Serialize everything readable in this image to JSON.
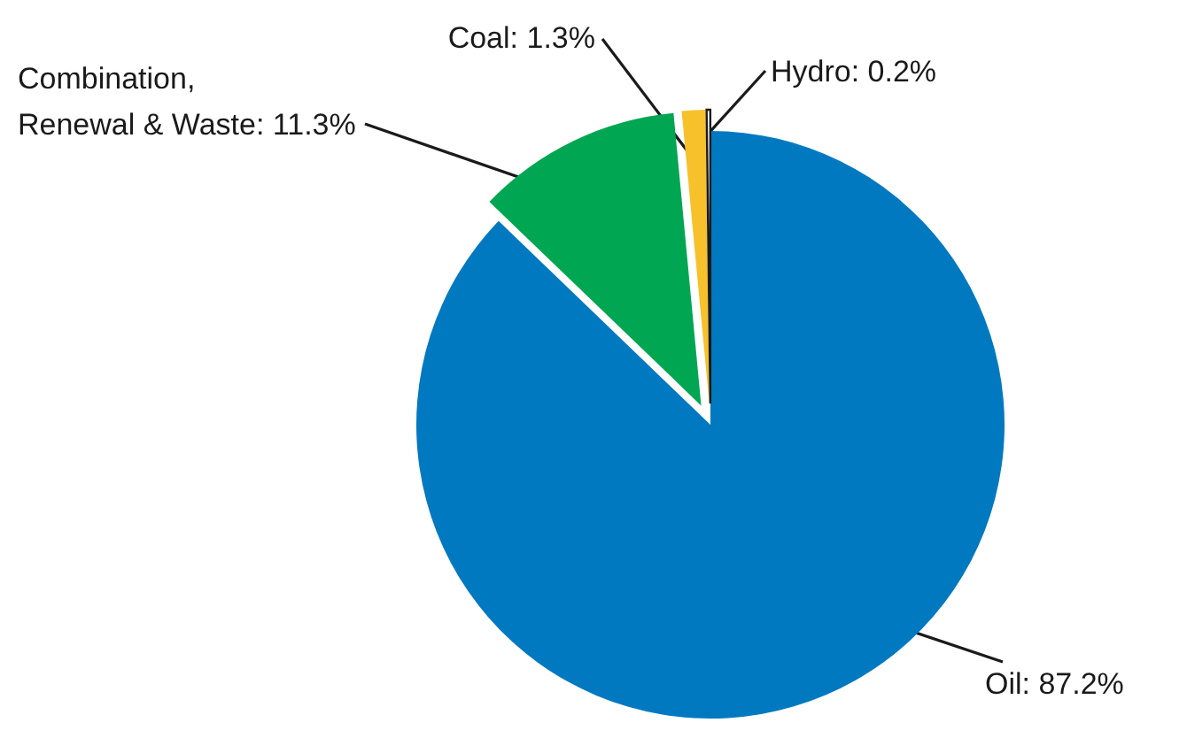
{
  "chart_data": {
    "type": "pie",
    "categories": [
      "Oil",
      "Combination, Renewal & Waste",
      "Coal",
      "Hydro"
    ],
    "values": [
      87.2,
      11.3,
      1.3,
      0.2
    ],
    "colors": [
      "#0079c1",
      "#00a651",
      "#f7c12c",
      "#ffffff"
    ],
    "value_labels": [
      "87.2%",
      "11.3%",
      "1.3%",
      "0.2%"
    ]
  }
}
